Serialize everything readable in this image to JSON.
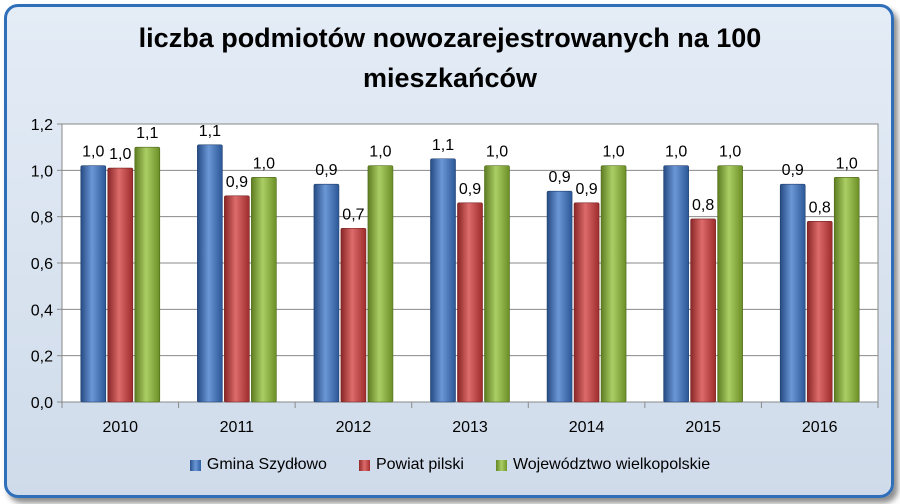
{
  "chart_data": {
    "type": "bar",
    "title": "liczba podmiotów nowozarejestrowanych na 100 mieszkańców",
    "categories": [
      "2010",
      "2011",
      "2012",
      "2013",
      "2014",
      "2015",
      "2016"
    ],
    "series": [
      {
        "name": "Gmina Szydłowo",
        "color": "#3a74c9",
        "values": [
          1.02,
          1.11,
          0.94,
          1.05,
          0.91,
          1.02,
          0.94
        ],
        "labels": [
          "1,0",
          "1,1",
          "0,9",
          "1,1",
          "0,9",
          "1,0",
          "0,9"
        ]
      },
      {
        "name": "Powiat pilski",
        "color": "#d23a3a",
        "values": [
          1.01,
          0.89,
          0.75,
          0.86,
          0.86,
          0.79,
          0.78
        ],
        "labels": [
          "1,0",
          "0,9",
          "0,7",
          "0,9",
          "0,9",
          "0,8",
          "0,8"
        ]
      },
      {
        "name": "Województwo wielkopolskie",
        "color": "#8fbe32",
        "values": [
          1.1,
          0.97,
          1.02,
          1.02,
          1.02,
          1.02,
          0.97
        ],
        "labels": [
          "1,1",
          "1,0",
          "1,0",
          "1,0",
          "1,0",
          "1,0",
          "1,0"
        ]
      }
    ],
    "yticks": [
      "0,0",
      "0,2",
      "0,4",
      "0,6",
      "0,8",
      "1,0",
      "1,2"
    ],
    "ylim": [
      0,
      1.2
    ],
    "grid": true,
    "legend_position": "bottom"
  }
}
